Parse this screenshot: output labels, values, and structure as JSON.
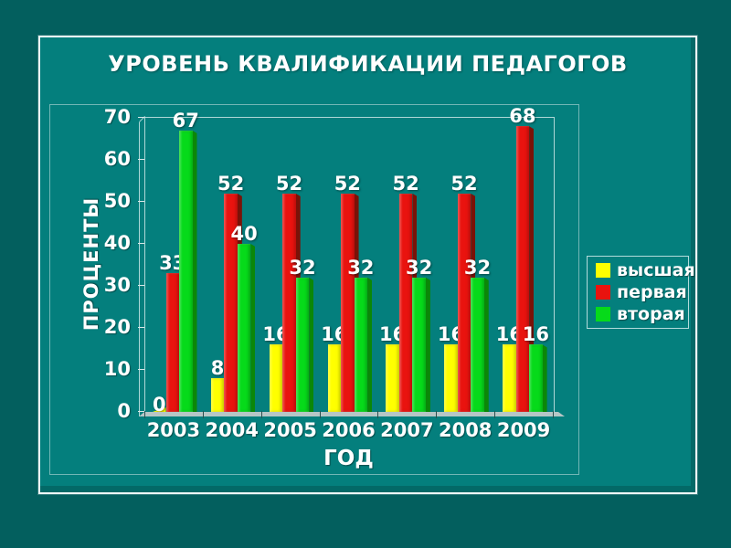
{
  "slide": {
    "title": "УРОВЕНЬ КВАЛИФИКАЦИИ ПЕДАГОГОВ",
    "background_color": "#047f7d",
    "outer_background_color": "#035f5e",
    "frame_color": "#eef6f6"
  },
  "chart_data": {
    "type": "bar",
    "title": "УРОВЕНЬ КВАЛИФИКАЦИИ ПЕДАГОГОВ",
    "categories": [
      "2003",
      "2004",
      "2005",
      "2006",
      "2007",
      "2008",
      "2009"
    ],
    "series": [
      {
        "name": "высшая",
        "color": "#ffff00",
        "side_color": "#a2a000",
        "values": [
          0,
          8,
          16,
          16,
          16,
          16,
          16
        ]
      },
      {
        "name": "первая",
        "color": "#e9130f",
        "side_color": "#7a1208",
        "values": [
          33,
          52,
          52,
          52,
          52,
          52,
          68
        ]
      },
      {
        "name": "вторая",
        "color": "#06da1a",
        "side_color": "#0b8708",
        "values": [
          67,
          40,
          32,
          32,
          32,
          32,
          16
        ]
      }
    ],
    "xlabel": "ГОД",
    "ylabel": "ПРОЦЕНТЫ",
    "ylim": [
      0,
      70
    ],
    "yticks": [
      0,
      10,
      20,
      30,
      40,
      50,
      60,
      70
    ],
    "grid": false,
    "legend_position": "right-outside",
    "data_labels": true,
    "label_color": "#ffffff",
    "axis_text_color": "#ffffff",
    "style": "3d-clustered"
  }
}
